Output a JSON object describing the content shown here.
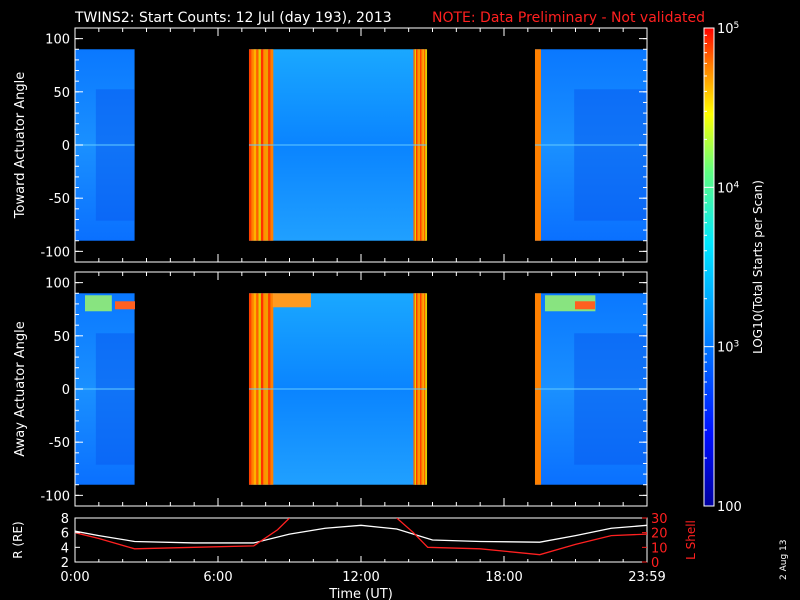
{
  "title": {
    "main": "TWINS2: Start Counts: 12 Jul (day 193), 2013",
    "note": "NOTE: Data Preliminary - Not validated"
  },
  "colors": {
    "background": "#000000",
    "axis": "#ffffff",
    "note": "#ff2020",
    "r_line": "#ffffff",
    "lshell_line": "#ff2020"
  },
  "side_label": "2 Aug 13",
  "chart_data": [
    {
      "type": "heatmap",
      "ylabel": "Toward Actuator Angle",
      "xlim": [
        0,
        24
      ],
      "ylim": [
        -110,
        110
      ],
      "yticks": [
        100,
        50,
        0,
        -50,
        -100
      ],
      "data_ylim": [
        -90,
        90
      ],
      "data_segments": [
        {
          "start": 0.0,
          "end": 2.5,
          "level": "low"
        },
        {
          "start": 7.3,
          "end": 14.75,
          "level": "mixed"
        },
        {
          "start": 19.3,
          "end": 24.0,
          "level": "low"
        }
      ]
    },
    {
      "type": "heatmap",
      "ylabel": "Away Actuator Angle",
      "xlim": [
        0,
        24
      ],
      "ylim": [
        -110,
        110
      ],
      "yticks": [
        100,
        50,
        0,
        -50,
        -100
      ],
      "data_ylim": [
        -90,
        90
      ],
      "data_segments": [
        {
          "start": 0.0,
          "end": 2.5,
          "level": "low"
        },
        {
          "start": 7.3,
          "end": 14.75,
          "level": "mixed"
        },
        {
          "start": 19.3,
          "end": 24.0,
          "level": "low"
        }
      ]
    },
    {
      "type": "line",
      "ylabel_left": "R (RE)",
      "ylabel_right": "L Shell",
      "ylim_left": [
        2,
        8
      ],
      "yticks_left": [
        8,
        6,
        4,
        2
      ],
      "ylim_right": [
        0,
        30
      ],
      "yticks_right": [
        30,
        20,
        10,
        0
      ],
      "xlabel": "Time (UT)",
      "xlim": [
        0,
        24
      ],
      "xticks": [
        0,
        6,
        12,
        18,
        24
      ],
      "xtick_labels": [
        "0:00",
        "6:00",
        "12:00",
        "18:00",
        "23:59"
      ],
      "series": [
        {
          "axis": "left",
          "x": [
            0,
            1,
            2.5,
            5,
            7.5,
            9,
            10.5,
            12,
            13.5,
            15,
            17,
            19.5,
            21,
            22.5,
            24
          ],
          "y": [
            6.2,
            5.6,
            4.8,
            4.6,
            4.6,
            5.8,
            6.6,
            7.0,
            6.5,
            5.0,
            4.8,
            4.7,
            5.6,
            6.6,
            7.0
          ]
        },
        {
          "axis": "right",
          "x": [
            0,
            1,
            2.5,
            5,
            7.5,
            8.5,
            9.0
          ],
          "y": [
            20,
            16,
            9,
            10,
            11,
            22,
            30
          ]
        },
        {
          "axis": "right",
          "x": [
            13.5,
            14.2,
            14.8,
            17,
            19.5,
            21,
            22.5,
            24
          ],
          "y": [
            30,
            20,
            10,
            9,
            5,
            12,
            18,
            19
          ]
        }
      ]
    },
    {
      "type": "colorbar",
      "label": "LOG10(Total Starts per Scan)",
      "scale": "log",
      "range": [
        100,
        100000
      ],
      "tick_labels": [
        "100",
        "10^3",
        "10^4",
        "10^5"
      ],
      "tick_values": [
        100,
        1000,
        10000,
        100000
      ]
    }
  ]
}
